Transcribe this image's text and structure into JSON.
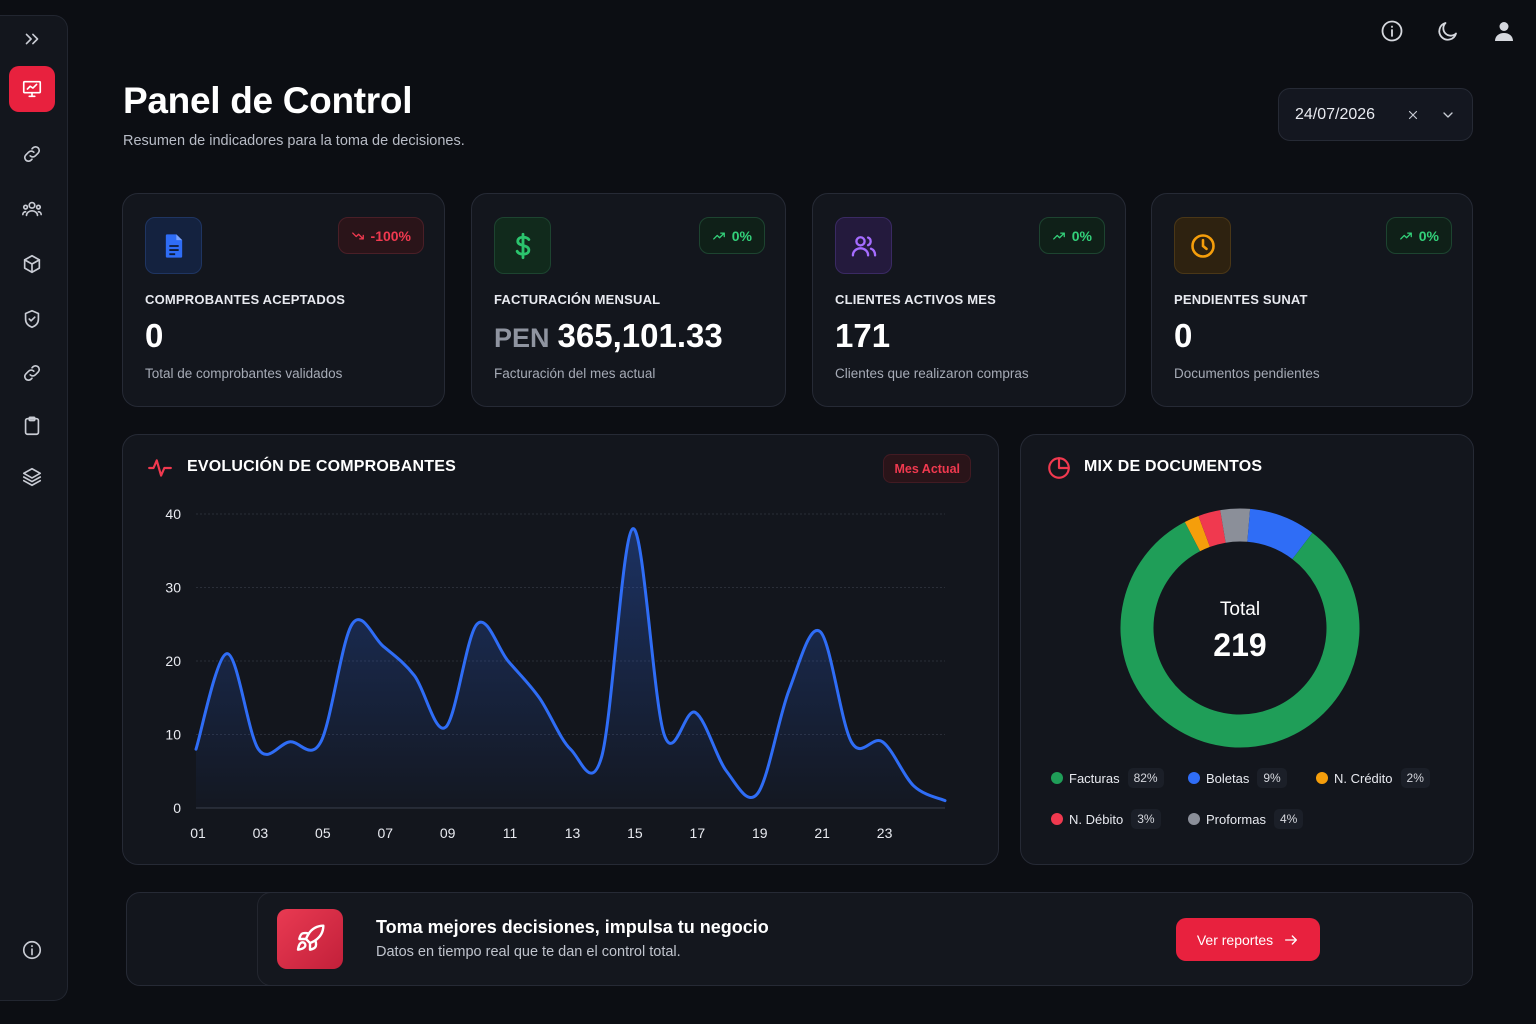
{
  "header": {
    "title": "Panel de Control",
    "subtitle": "Resumen de indicadores para la toma de decisiones.",
    "date": "24/07/2026"
  },
  "sidebar": {
    "items": [
      {
        "name": "expand",
        "icon": "double-chevron-right-icon"
      },
      {
        "name": "dashboard",
        "icon": "chart-presentation-icon",
        "active": true
      },
      {
        "name": "links",
        "icon": "link-icon"
      },
      {
        "name": "users",
        "icon": "users-icon"
      },
      {
        "name": "products",
        "icon": "box-icon"
      },
      {
        "name": "security",
        "icon": "shield-check-icon"
      },
      {
        "name": "integrations",
        "icon": "link-icon"
      },
      {
        "name": "reports",
        "icon": "clipboard-icon"
      },
      {
        "name": "layers",
        "icon": "layers-icon"
      },
      {
        "name": "info",
        "icon": "info-icon"
      }
    ]
  },
  "topbar": {
    "icons": [
      "info-icon",
      "moon-icon",
      "user-icon"
    ]
  },
  "kpis": [
    {
      "label": "COMPROBANTES ACEPTADOS",
      "value": "0",
      "currency": "",
      "description": "Total de comprobantes validados",
      "badge": "-100%",
      "trend": "down",
      "icon": "document-icon",
      "color": "#2f6df6"
    },
    {
      "label": "FACTURACIÓN MENSUAL",
      "value": "365,101.33",
      "currency": "PEN",
      "description": "Facturación del mes actual",
      "badge": "0%",
      "trend": "up",
      "icon": "dollar-icon",
      "color": "#2bc46d"
    },
    {
      "label": "CLIENTES ACTIVOS MES",
      "value": "171",
      "currency": "",
      "description": "Clientes que realizaron compras",
      "badge": "0%",
      "trend": "up",
      "icon": "users-icon",
      "color": "#9b5cf6"
    },
    {
      "label": "PENDIENTES SUNAT",
      "value": "0",
      "currency": "",
      "description": "Documentos pendientes",
      "badge": "0%",
      "trend": "up",
      "icon": "clock-icon",
      "color": "#f59e0b"
    }
  ],
  "evolution": {
    "title": "EVOLUCIÓN DE COMPROBANTES",
    "tag": "Mes Actual",
    "icon": "activity-icon"
  },
  "mix": {
    "title": "MIX DE DOCUMENTOS",
    "icon": "pie-chart-icon",
    "center_label": "Total",
    "center_value": "219"
  },
  "chart_data": [
    {
      "type": "area",
      "title": "EVOLUCIÓN DE COMPROBANTES",
      "x": [
        1,
        2,
        3,
        4,
        5,
        6,
        7,
        8,
        9,
        10,
        11,
        12,
        13,
        14,
        15,
        16,
        17,
        18,
        19,
        20,
        21,
        22,
        23,
        24,
        25
      ],
      "x_tick_labels": [
        "01",
        "03",
        "05",
        "07",
        "09",
        "11",
        "13",
        "15",
        "17",
        "19",
        "21",
        "23"
      ],
      "values": [
        8,
        21,
        8,
        9,
        9,
        25,
        22,
        18,
        11,
        25,
        20,
        15,
        8,
        7,
        38,
        10,
        13,
        5,
        2,
        16,
        24,
        9,
        9,
        3,
        1
      ],
      "ylim": [
        0,
        40
      ],
      "yticks": [
        0,
        10,
        20,
        30,
        40
      ],
      "grid": true,
      "color": "#2f6df6"
    },
    {
      "type": "pie",
      "title": "MIX DE DOCUMENTOS",
      "donut": true,
      "total": 219,
      "slices": [
        {
          "label": "Facturas",
          "value": 82,
          "pct": "82%",
          "color": "#1f9e58"
        },
        {
          "label": "Boletas",
          "value": 9,
          "pct": "9%",
          "color": "#2f6df6"
        },
        {
          "label": "N. Crédito",
          "value": 2,
          "pct": "2%",
          "color": "#f59e0b"
        },
        {
          "label": "N. Débito",
          "value": 3,
          "pct": "3%",
          "color": "#f0394f"
        },
        {
          "label": "Proformas",
          "value": 4,
          "pct": "4%",
          "color": "#8b8f99"
        }
      ]
    }
  ],
  "banner": {
    "title": "Toma mejores decisiones, impulsa tu negocio",
    "subtitle": "Datos en tiempo real que te dan el control total.",
    "button": "Ver reportes",
    "icon": "rocket-icon"
  }
}
